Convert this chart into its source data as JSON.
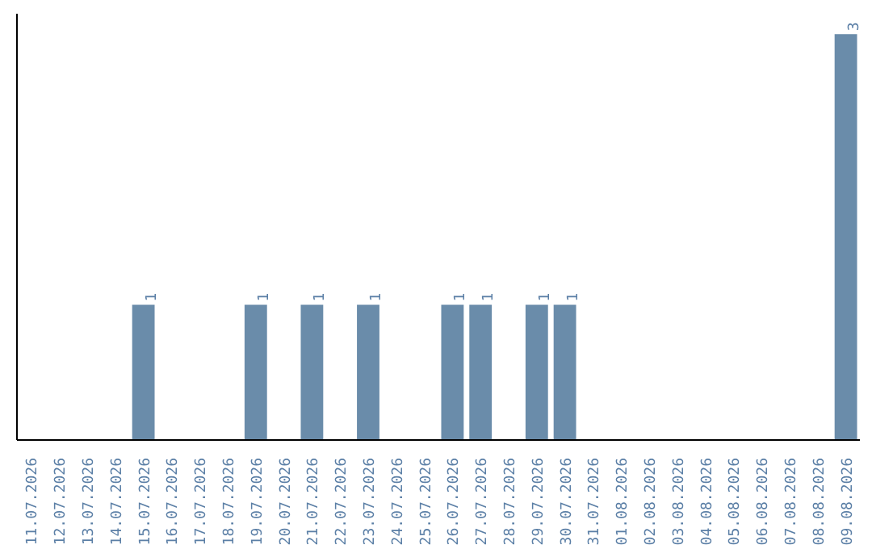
{
  "chart_data": {
    "type": "bar",
    "color": "#6a8caa",
    "categories": [
      "11.07.2026",
      "12.07.2026",
      "13.07.2026",
      "14.07.2026",
      "15.07.2026",
      "16.07.2026",
      "17.07.2026",
      "18.07.2026",
      "19.07.2026",
      "20.07.2026",
      "21.07.2026",
      "22.07.2026",
      "23.07.2026",
      "24.07.2026",
      "25.07.2026",
      "26.07.2026",
      "27.07.2026",
      "28.07.2026",
      "29.07.2026",
      "30.07.2026",
      "31.07.2026",
      "01.08.2026",
      "02.08.2026",
      "03.08.2026",
      "04.08.2026",
      "05.08.2026",
      "06.08.2026",
      "07.08.2026",
      "08.08.2026",
      "09.08.2026"
    ],
    "values": [
      0,
      0,
      0,
      0,
      1,
      0,
      0,
      0,
      1,
      0,
      1,
      0,
      1,
      0,
      0,
      1,
      1,
      0,
      1,
      1,
      0,
      0,
      0,
      0,
      0,
      0,
      0,
      0,
      0,
      3
    ],
    "value_labels": [
      null,
      null,
      null,
      null,
      "1",
      null,
      null,
      null,
      "1",
      null,
      "1",
      null,
      "1",
      null,
      null,
      "1",
      "1",
      null,
      "1",
      "1",
      null,
      null,
      null,
      null,
      null,
      null,
      null,
      null,
      null,
      "3"
    ],
    "tick_labels": "x",
    "grid": false
  }
}
